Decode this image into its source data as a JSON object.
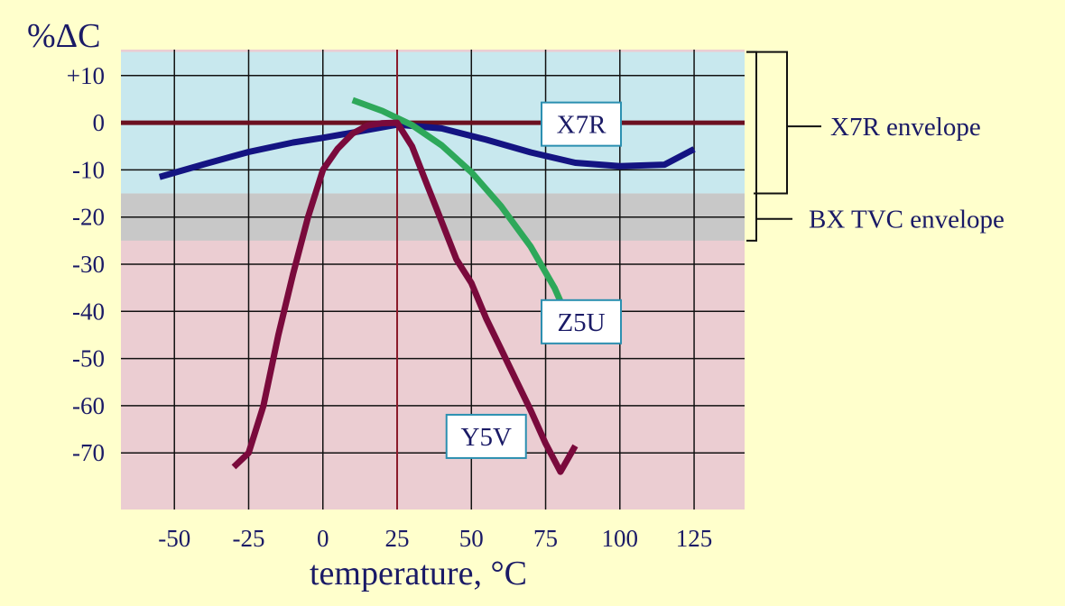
{
  "chart_data": {
    "type": "line",
    "xlabel": "temperature, °C",
    "ylabel": "%ΔC",
    "xlim": [
      -68,
      142
    ],
    "ylim": [
      -82,
      15.5
    ],
    "x_ticks": [
      -50,
      -25,
      0,
      25,
      50,
      75,
      100,
      125
    ],
    "x_tick_labels": [
      "-50",
      "-25",
      "0",
      "25",
      "50",
      "75",
      "100",
      "125"
    ],
    "y_ticks": [
      10,
      0,
      -10,
      -20,
      -30,
      -40,
      -50,
      -60,
      -70
    ],
    "y_tick_labels": [
      "+10",
      "0",
      "-10",
      "-20",
      "-30",
      "-40",
      "-50",
      "-60",
      "-70"
    ],
    "x_gridlines": [
      -50,
      -25,
      0,
      25,
      50,
      75,
      100,
      125
    ],
    "y_gridlines": [
      10,
      0,
      -10,
      -20,
      -30,
      -40,
      -50,
      -60,
      -70
    ],
    "reference_line_x": 25,
    "envelopes": [
      {
        "name": "X7R envelope",
        "ymin": -15,
        "ymax": 15,
        "color": "#c8e8ee"
      },
      {
        "name": "BX TVC envelope",
        "ymin": -25,
        "ymax": -15,
        "color": "#c8c8c8"
      }
    ],
    "series": [
      {
        "name": "X7R",
        "color": "#141482",
        "x": [
          -55,
          -40,
          -25,
          -10,
          0,
          10,
          25,
          40,
          55,
          70,
          85,
          100,
          115,
          125
        ],
        "y": [
          -11.5,
          -8.8,
          -6.2,
          -4.2,
          -3.2,
          -2.1,
          -0.4,
          -1.2,
          -3.6,
          -6.3,
          -8.5,
          -9.2,
          -8.9,
          -5.6
        ]
      },
      {
        "name": "Z5U",
        "color": "#2ea85a",
        "x": [
          10,
          20,
          30,
          40,
          50,
          60,
          70,
          78,
          85
        ],
        "y": [
          4.8,
          2.5,
          -0.5,
          -4.8,
          -10.5,
          -17.7,
          -26.3,
          -35,
          -45
        ]
      },
      {
        "name": "Y5V",
        "color": "#7a0a3c",
        "x": [
          -30,
          -25,
          -20,
          -15,
          -10,
          -5,
          0,
          5,
          10,
          15,
          20,
          25,
          30,
          35,
          40,
          45,
          50,
          55,
          60,
          65,
          70,
          75,
          80,
          85
        ],
        "y": [
          -73,
          -70,
          -60,
          -45,
          -32,
          -20,
          -10,
          -5.5,
          -2.3,
          -0.6,
          -0.1,
          0,
          -5,
          -13,
          -21,
          -29,
          -34,
          -41.5,
          -48,
          -54.5,
          -61,
          -68,
          -74,
          -68.5
        ]
      }
    ],
    "series_label_positions": {
      "X7R": [
        87,
        -0.3
      ],
      "Z5U": [
        87,
        -42.2
      ],
      "Y5V": [
        55,
        -66.5
      ]
    },
    "annotations": [
      {
        "text": "X7R envelope",
        "ymin": -15,
        "ymax": 15
      },
      {
        "text": "BX TVC envelope",
        "ymin": -25,
        "ymax": -15
      }
    ]
  }
}
